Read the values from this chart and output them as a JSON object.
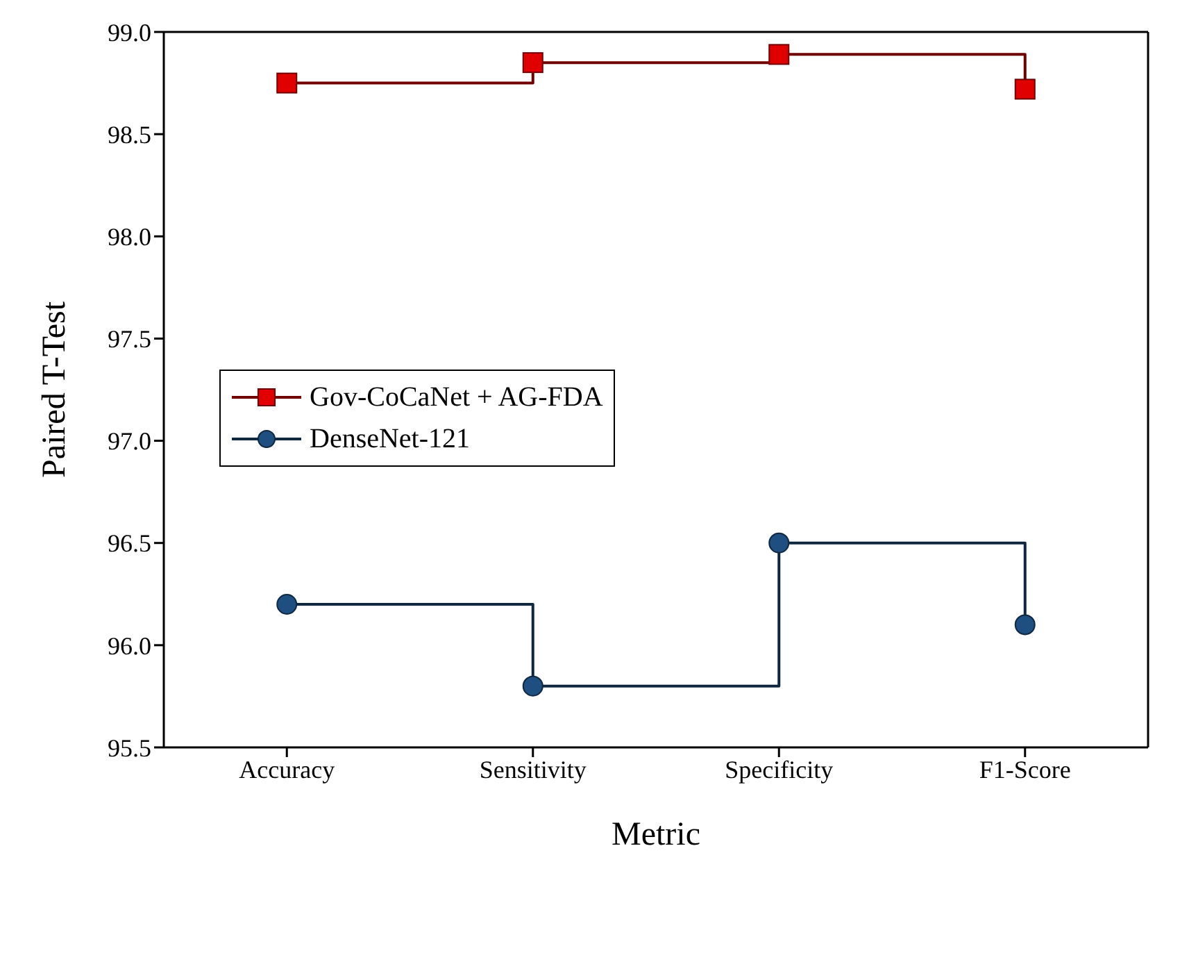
{
  "chart_data": {
    "type": "step",
    "xlabel": "Metric",
    "ylabel": "Paired T-Test",
    "categories": [
      "Accuracy",
      "Sensitivity",
      "Specificity",
      "F1-Score"
    ],
    "series": [
      {
        "name": "Gov-CoCaNet + AG-FDA",
        "color": "#e00000",
        "marker": "square",
        "values": [
          98.75,
          98.85,
          98.89,
          98.72
        ]
      },
      {
        "name": "DenseNet-121",
        "color": "#1f4e80",
        "marker": "circle",
        "values": [
          96.2,
          95.8,
          96.5,
          96.1
        ]
      }
    ],
    "ylim": [
      95.5,
      99.0
    ],
    "yticks": [
      {
        "value": 95.5,
        "label": "95.5"
      },
      {
        "value": 96.0,
        "label": "96.0"
      },
      {
        "value": 96.5,
        "label": "96.5"
      },
      {
        "value": 97.0,
        "label": "97.0"
      },
      {
        "value": 97.5,
        "label": "97.5"
      },
      {
        "value": 98.0,
        "label": "98.0"
      },
      {
        "value": 98.5,
        "label": "98.5"
      },
      {
        "value": 99.0,
        "label": "99.0"
      }
    ],
    "grid": false,
    "legend": "left",
    "line_style": "solid"
  }
}
